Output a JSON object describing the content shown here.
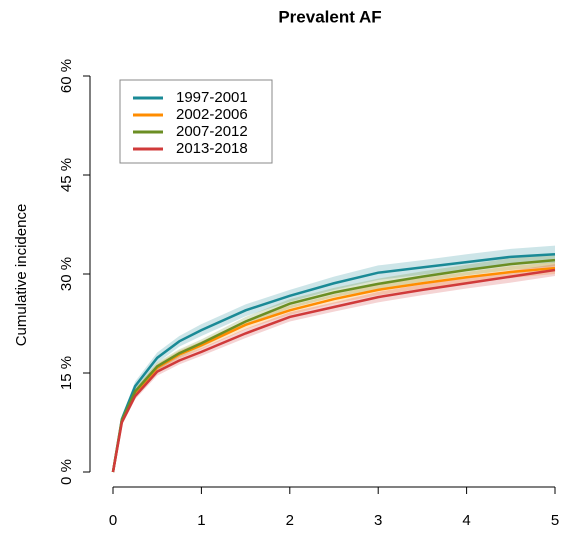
{
  "chart_data": {
    "type": "line",
    "title": "Prevalent AF",
    "y_label": "Cumulative incidence",
    "x": [
      0,
      0.1,
      0.25,
      0.5,
      0.75,
      1,
      1.5,
      2,
      2.5,
      3,
      3.5,
      4,
      4.5,
      5
    ],
    "xlim": [
      0,
      5
    ],
    "xticks": [
      0,
      1,
      2,
      3,
      4,
      5
    ],
    "ylim": [
      0,
      60
    ],
    "yticks": [
      {
        "value": 0,
        "label": "0 %"
      },
      {
        "value": 15,
        "label": "15 %"
      },
      {
        "value": 30,
        "label": "30 %"
      },
      {
        "value": 45,
        "label": "45 %"
      },
      {
        "value": 60,
        "label": "60 %"
      }
    ],
    "legend": "top-left",
    "series": [
      {
        "name": "1997-2001",
        "color": "#1a8a96",
        "values": [
          0,
          8,
          13,
          17.3,
          19.8,
          21.5,
          24.5,
          26.7,
          28.6,
          30.2,
          31,
          31.8,
          32.6,
          33
        ],
        "lower": [
          0,
          7.5,
          12.3,
          16.5,
          19,
          20.6,
          23.6,
          25.8,
          27.6,
          29.1,
          29.9,
          30.6,
          31.4,
          31.7
        ],
        "upper": [
          0,
          8.5,
          13.7,
          18.1,
          20.6,
          22.4,
          25.4,
          27.6,
          29.6,
          31.3,
          32.1,
          33,
          33.8,
          34.3
        ]
      },
      {
        "name": "2002-2006",
        "color": "#ff8c00",
        "values": [
          0,
          7.8,
          12,
          15.8,
          17.8,
          19.2,
          22.3,
          24.5,
          26.2,
          27.6,
          28.6,
          29.5,
          30.3,
          30.9
        ],
        "lower": [
          0,
          7.4,
          11.5,
          15.2,
          17.2,
          18.6,
          21.6,
          23.8,
          25.5,
          26.8,
          27.8,
          28.7,
          29.4,
          30
        ],
        "upper": [
          0,
          8.2,
          12.5,
          16.4,
          18.4,
          19.8,
          23,
          25.2,
          26.9,
          28.4,
          29.4,
          30.3,
          31.2,
          31.8
        ]
      },
      {
        "name": "2007-2012",
        "color": "#6b8e23",
        "values": [
          0,
          7.8,
          12.2,
          16,
          18,
          19.5,
          22.8,
          25.5,
          27.2,
          28.5,
          29.6,
          30.6,
          31.5,
          32.1
        ],
        "lower": [
          0,
          7.4,
          11.7,
          15.4,
          17.4,
          18.9,
          22.1,
          24.8,
          26.5,
          27.7,
          28.8,
          29.8,
          30.6,
          31.2
        ],
        "upper": [
          0,
          8.2,
          12.7,
          16.6,
          18.6,
          20.1,
          23.5,
          26.2,
          27.9,
          29.3,
          30.4,
          31.4,
          32.4,
          33
        ]
      },
      {
        "name": "2013-2018",
        "color": "#d03a3a",
        "values": [
          0,
          7.5,
          11.5,
          15.2,
          16.9,
          18.2,
          21,
          23.5,
          25,
          26.5,
          27.6,
          28.6,
          29.6,
          30.6
        ],
        "lower": [
          0,
          7.1,
          11,
          14.6,
          16.3,
          17.6,
          20.3,
          22.8,
          24.3,
          25.7,
          26.8,
          27.8,
          28.7,
          29.7
        ],
        "upper": [
          0,
          7.9,
          12,
          15.8,
          17.5,
          18.8,
          21.7,
          24.2,
          25.7,
          27.3,
          28.4,
          29.4,
          30.5,
          31.5
        ]
      }
    ]
  }
}
